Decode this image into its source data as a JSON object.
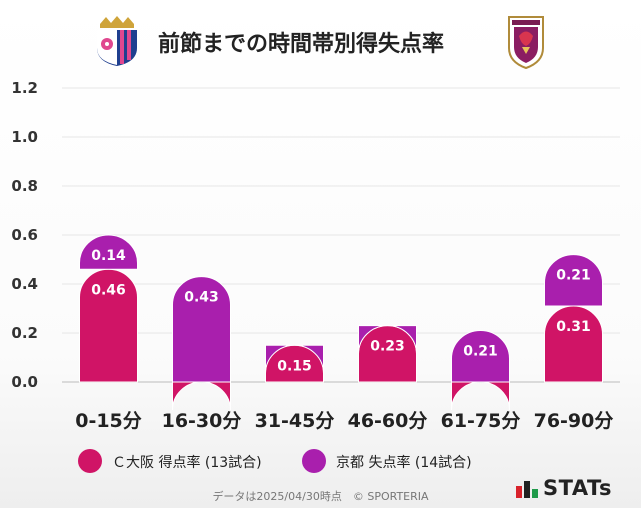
{
  "header": {
    "title": "前節までの時間帯別得失点率",
    "left_crest_icon": "cerezo-osaka-crest-icon",
    "right_crest_icon": "kyoto-sanga-crest-icon"
  },
  "chart_data": {
    "type": "bar",
    "stacked": true,
    "categories": [
      "0-15分",
      "16-30分",
      "31-45分",
      "46-60分",
      "61-75分",
      "76-90分"
    ],
    "ylim": [
      0,
      1.2
    ],
    "yticks": [
      "0.0",
      "0.2",
      "0.4",
      "0.6",
      "0.8",
      "1.0",
      "1.2"
    ],
    "grid": true,
    "series": [
      {
        "name": "Ｃ大阪 得点率 (13試合)",
        "values": [
          0.46,
          0.0,
          0.15,
          0.23,
          0.0,
          0.31
        ],
        "color": "#d01466"
      },
      {
        "name": "京都 失点率 (14試合)",
        "values": [
          0.14,
          0.43,
          0.0,
          0.0,
          0.21,
          0.21
        ],
        "color": "#a91fad"
      }
    ],
    "labels": [
      [
        "0.46",
        "",
        "0.15",
        "0.23",
        "",
        "0.31"
      ],
      [
        "0.14",
        "0.43",
        "",
        "",
        "0.21",
        "0.21"
      ]
    ],
    "legend_position": "bottom"
  },
  "footer": {
    "note": "データは2025/04/30時点　© SPORTERIA"
  },
  "logo": {
    "text": "STATs",
    "icon": "stats-bar-logo-icon"
  }
}
